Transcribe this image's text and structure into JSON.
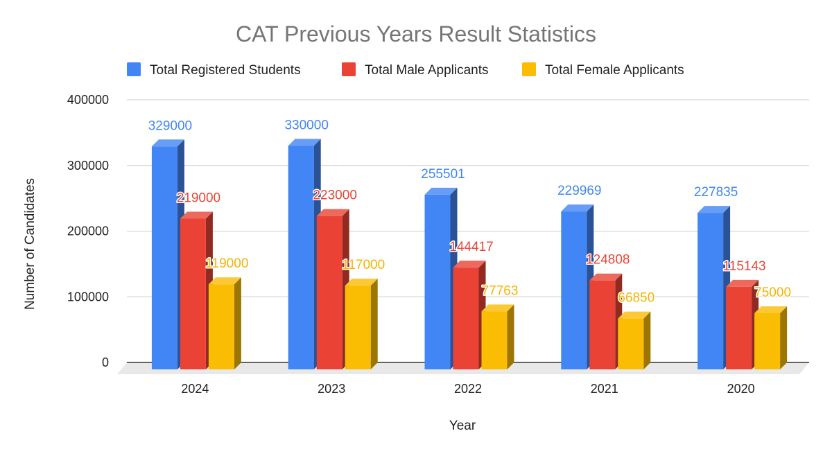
{
  "chart_data": {
    "type": "bar",
    "title": "CAT Previous Years Result Statistics",
    "xlabel": "Year",
    "ylabel": "Number of Candidates",
    "categories": [
      "2024",
      "2023",
      "2022",
      "2021",
      "2020"
    ],
    "series": [
      {
        "name": "Total Registered Students",
        "color": "#4285f4",
        "values": [
          329000,
          330000,
          255501,
          229969,
          227835
        ]
      },
      {
        "name": "Total Male Applicants",
        "color": "#ea4335",
        "values": [
          219000,
          223000,
          144417,
          124808,
          115143
        ]
      },
      {
        "name": "Total Female Applicants",
        "color": "#fbbc04",
        "values": [
          119000,
          117000,
          77763,
          66850,
          75000
        ]
      }
    ],
    "ylim": [
      0,
      400000
    ],
    "yticks": [
      0,
      100000,
      200000,
      300000,
      400000
    ],
    "grid": true,
    "legend_position": "top",
    "style": "3d-bar"
  }
}
